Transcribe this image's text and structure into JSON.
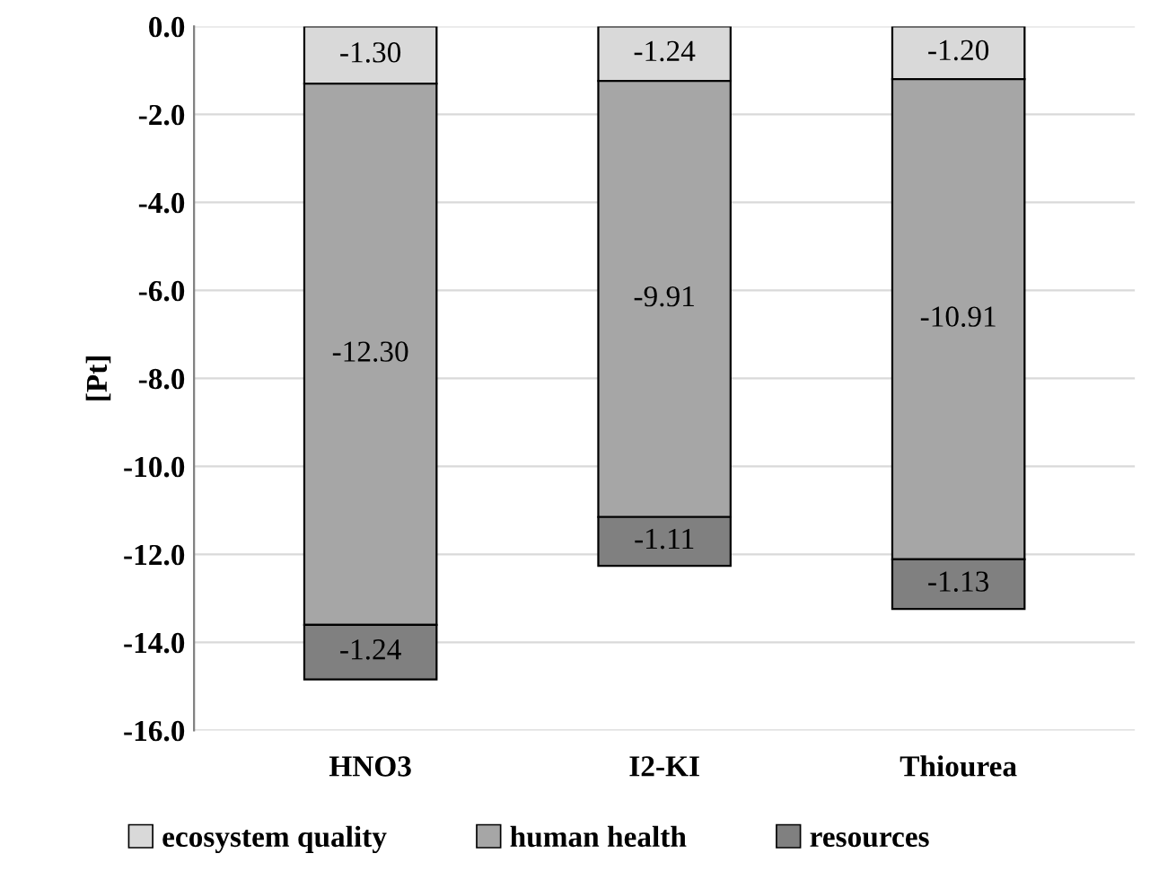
{
  "chart_data": {
    "type": "bar",
    "ylabel": "[Pt]",
    "categories": [
      "HNO3",
      "I2-KI",
      "Thiourea"
    ],
    "stacked": true,
    "series": [
      {
        "name": "ecosystem quality",
        "color": "#d9d9d9",
        "values": [
          -1.3,
          -1.24,
          -1.2
        ],
        "value_labels": [
          "-1.30",
          "-1.24",
          "-1.20"
        ]
      },
      {
        "name": "human health",
        "color": "#a6a6a6",
        "values": [
          -12.3,
          -9.91,
          -10.91
        ],
        "value_labels": [
          "-12.30",
          "-9.91",
          "-10.91"
        ]
      },
      {
        "name": "resources",
        "color": "#808080",
        "values": [
          -1.24,
          -1.11,
          -1.13
        ],
        "value_labels": [
          "-1.24",
          "-1.11",
          "-1.13"
        ]
      }
    ],
    "ylim": [
      -16,
      0
    ],
    "yticks": [
      {
        "value": 0,
        "label": "0.0"
      },
      {
        "value": -2,
        "label": "-2.0"
      },
      {
        "value": -4,
        "label": "-4.0"
      },
      {
        "value": -6,
        "label": "-6.0"
      },
      {
        "value": -8,
        "label": "-8.0"
      },
      {
        "value": -10,
        "label": "-10.0"
      },
      {
        "value": -12,
        "label": "-12.0"
      },
      {
        "value": -14,
        "label": "-14.0"
      },
      {
        "value": -16,
        "label": "-16.0"
      }
    ],
    "grid": "y",
    "legend": "bottom"
  }
}
